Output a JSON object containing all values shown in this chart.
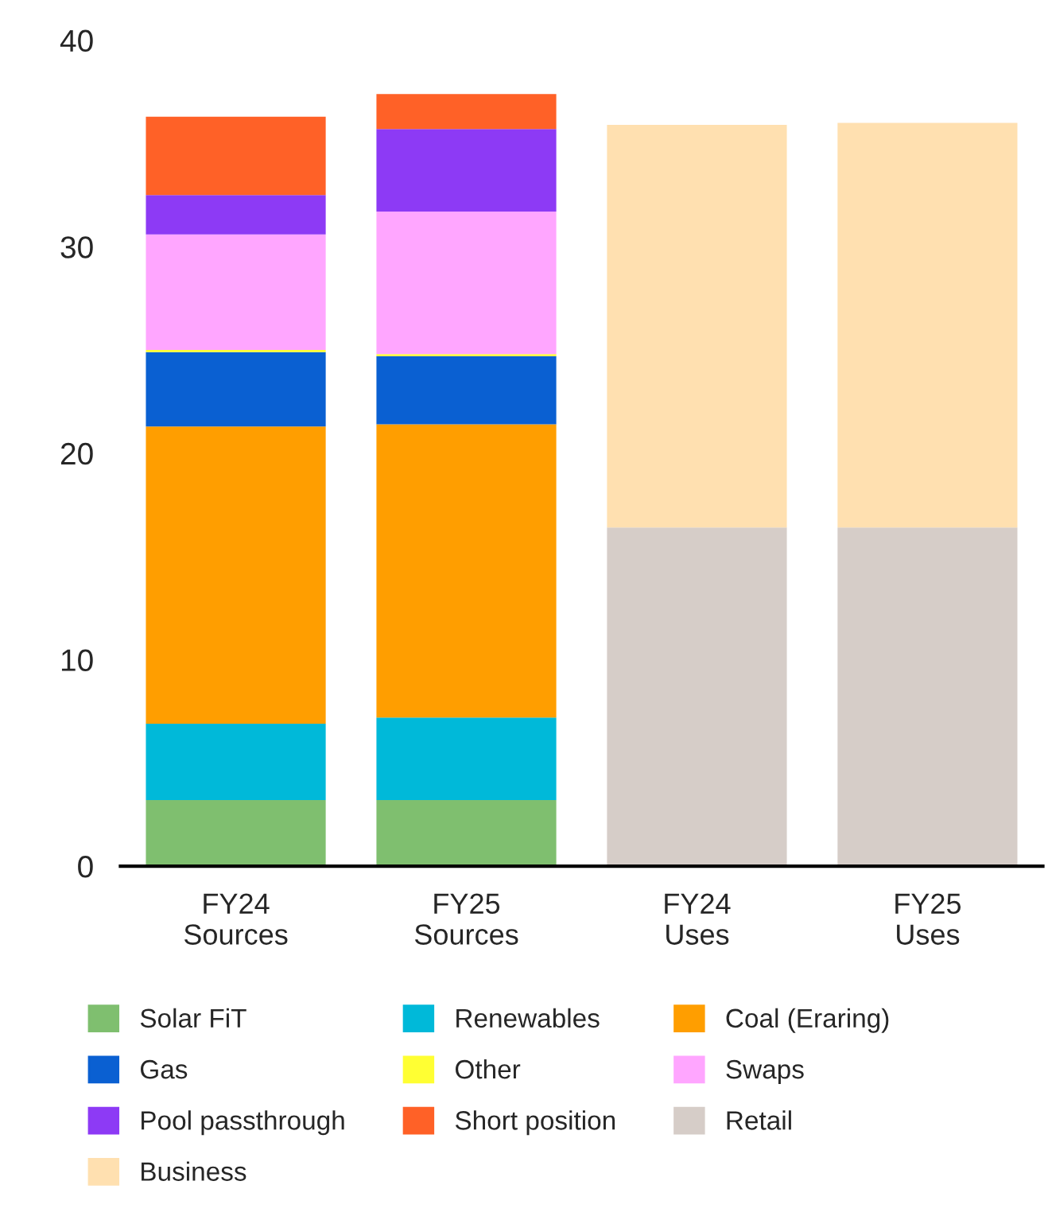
{
  "chart_data": {
    "type": "bar",
    "stacked": true,
    "categories": [
      "FY24\nSources",
      "FY25\nSources",
      "FY24\nUses",
      "FY25\nUses"
    ],
    "series": [
      {
        "name": "Solar FiT",
        "color": "#7fbf6f",
        "values": [
          3.2,
          3.2,
          null,
          null
        ]
      },
      {
        "name": "Renewables",
        "color": "#00b9d9",
        "values": [
          3.7,
          4.0,
          null,
          null
        ]
      },
      {
        "name": "Coal (Eraring)",
        "color": "#ff9e00",
        "values": [
          14.4,
          14.2,
          null,
          null
        ]
      },
      {
        "name": "Gas",
        "color": "#0a60d2",
        "values": [
          3.6,
          3.3,
          null,
          null
        ]
      },
      {
        "name": "Other",
        "color": "#ffff33",
        "values": [
          0.1,
          0.1,
          null,
          null
        ]
      },
      {
        "name": "Swaps",
        "color": "#ffa6ff",
        "values": [
          5.6,
          6.9,
          null,
          null
        ]
      },
      {
        "name": "Pool passthrough",
        "color": "#8d3af5",
        "values": [
          1.9,
          4.0,
          null,
          null
        ]
      },
      {
        "name": "Short position",
        "color": "#ff6127",
        "values": [
          3.8,
          1.7,
          null,
          null
        ]
      },
      {
        "name": "Retail",
        "color": "#d6cdc8",
        "values": [
          null,
          null,
          16.4,
          16.4
        ]
      },
      {
        "name": "Business",
        "color": "#ffe0b0",
        "values": [
          null,
          null,
          19.5,
          19.6
        ]
      }
    ],
    "ylim": [
      0,
      40
    ],
    "yticks": [
      0,
      10,
      20,
      30,
      40
    ],
    "grid": false,
    "legend": "bottom"
  }
}
